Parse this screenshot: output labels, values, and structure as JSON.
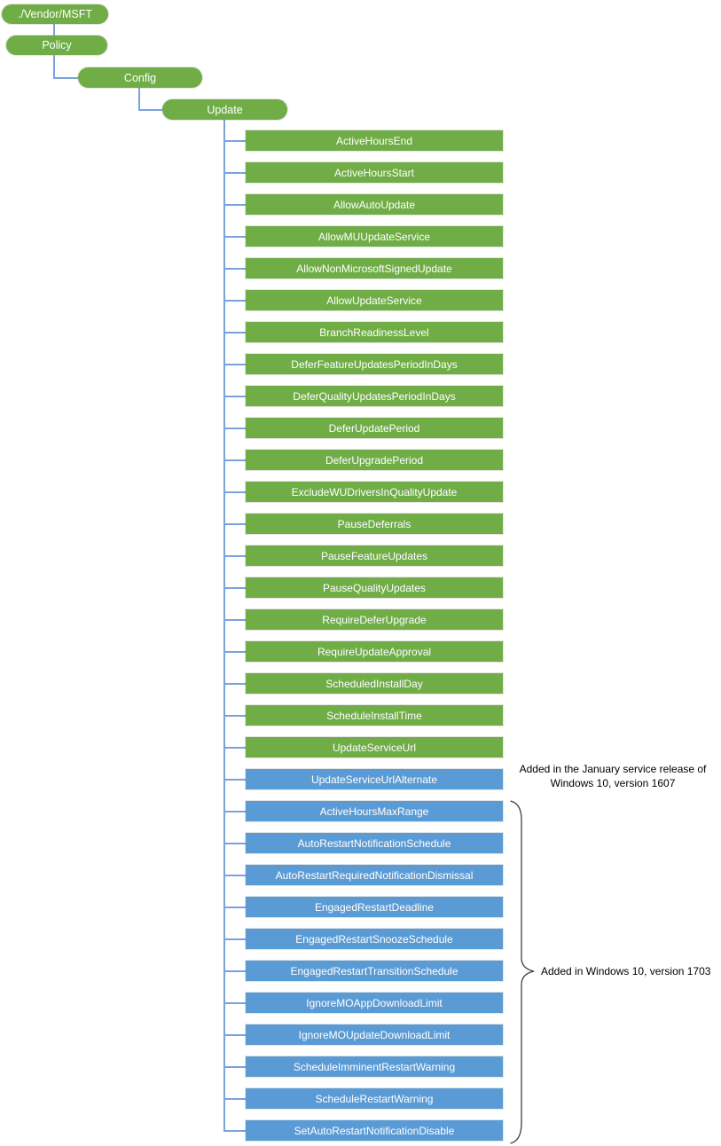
{
  "diagram": {
    "root_path": [
      {
        "label": "./Vendor/MSFT"
      },
      {
        "label": "Policy"
      },
      {
        "label": "Config"
      },
      {
        "label": "Update"
      }
    ],
    "leaves": [
      {
        "label": "ActiveHoursEnd",
        "group": "green"
      },
      {
        "label": "ActiveHoursStart",
        "group": "green"
      },
      {
        "label": "AllowAutoUpdate",
        "group": "green"
      },
      {
        "label": "AllowMUUpdateService",
        "group": "green"
      },
      {
        "label": "AllowNonMicrosoftSignedUpdate",
        "group": "green"
      },
      {
        "label": "AllowUpdateService",
        "group": "green"
      },
      {
        "label": "BranchReadinessLevel",
        "group": "green"
      },
      {
        "label": "DeferFeatureUpdatesPeriodInDays",
        "group": "green"
      },
      {
        "label": "DeferQualityUpdatesPeriodInDays",
        "group": "green"
      },
      {
        "label": "DeferUpdatePeriod",
        "group": "green"
      },
      {
        "label": "DeferUpgradePeriod",
        "group": "green"
      },
      {
        "label": "ExcludeWUDriversInQualityUpdate",
        "group": "green"
      },
      {
        "label": "PauseDeferrals",
        "group": "green"
      },
      {
        "label": "PauseFeatureUpdates",
        "group": "green"
      },
      {
        "label": "PauseQualityUpdates",
        "group": "green"
      },
      {
        "label": "RequireDeferUpgrade",
        "group": "green"
      },
      {
        "label": "RequireUpdateApproval",
        "group": "green"
      },
      {
        "label": "ScheduledInstallDay",
        "group": "green"
      },
      {
        "label": "ScheduleInstallTime",
        "group": "green"
      },
      {
        "label": "UpdateServiceUrl",
        "group": "green"
      },
      {
        "label": "UpdateServiceUrlAlternate",
        "group": "blue"
      },
      {
        "label": "ActiveHoursMaxRange",
        "group": "blue"
      },
      {
        "label": "AutoRestartNotificationSchedule",
        "group": "blue"
      },
      {
        "label": "AutoRestartRequiredNotificationDismissal",
        "group": "blue"
      },
      {
        "label": "EngagedRestartDeadline",
        "group": "blue"
      },
      {
        "label": "EngagedRestartSnoozeSchedule",
        "group": "blue"
      },
      {
        "label": "EngagedRestartTransitionSchedule",
        "group": "blue"
      },
      {
        "label": "IgnoreMOAppDownloadLimit",
        "group": "blue"
      },
      {
        "label": "IgnoreMOUpdateDownloadLimit",
        "group": "blue"
      },
      {
        "label": "ScheduleImminentRestartWarning",
        "group": "blue"
      },
      {
        "label": "ScheduleRestartWarning",
        "group": "blue"
      },
      {
        "label": "SetAutoRestartNotificationDisable",
        "group": "blue"
      }
    ],
    "annotations": [
      {
        "line1": "Added in the January service release of",
        "line2": "Windows 10, version 1607"
      },
      {
        "text": "Added in Windows 10, version 1703"
      }
    ],
    "colors": {
      "green_node": "#70AD47",
      "blue_node": "#5B9BD5",
      "connector": "#7AA2DB",
      "brace": "#404040",
      "node_text": "#FFFFFF",
      "annotation_text": "#000000"
    }
  }
}
